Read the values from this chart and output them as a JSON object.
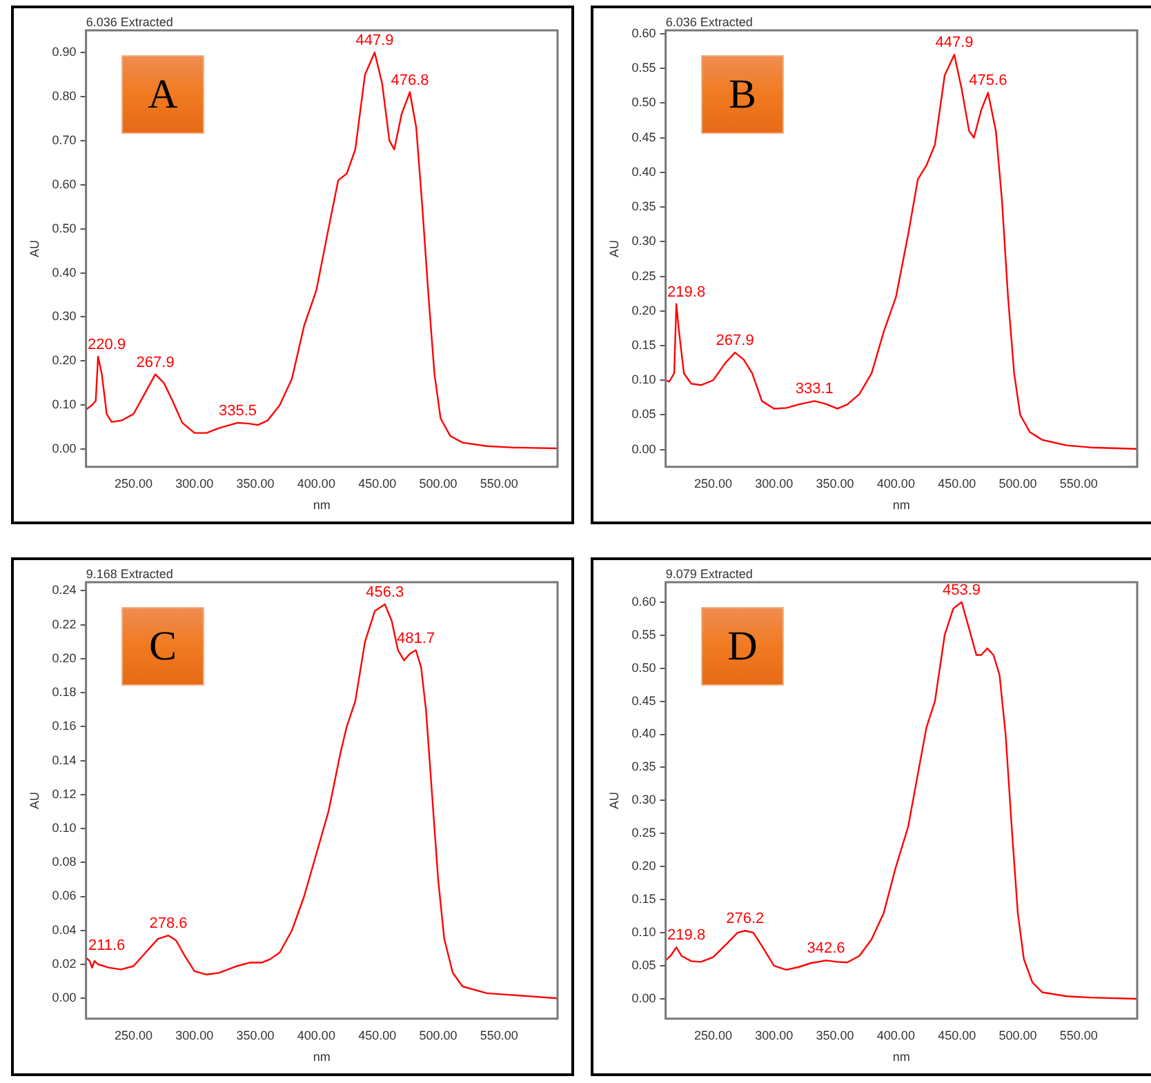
{
  "chart_data": [
    {
      "type": "line",
      "title": "6.036 Extracted",
      "xlabel": "nm",
      "ylabel": "AU",
      "grid": false,
      "legend": false,
      "marker": "none",
      "line_style": "solid",
      "xlim": [
        211,
        598
      ],
      "xticks": [
        {
          "value": 250,
          "label": "250.00"
        },
        {
          "value": 300,
          "label": "300.00"
        },
        {
          "value": 350,
          "label": "350.00"
        },
        {
          "value": 400,
          "label": "400.00"
        },
        {
          "value": 450,
          "label": "450.00"
        },
        {
          "value": 500,
          "label": "500.00"
        },
        {
          "value": 550,
          "label": "550.00"
        }
      ],
      "ylim": [
        -0.04,
        0.95
      ],
      "yticks": [
        {
          "value": 0,
          "label": "0.00"
        },
        {
          "value": 0.1,
          "label": "0.10"
        },
        {
          "value": 0.2,
          "label": "0.20"
        },
        {
          "value": 0.3,
          "label": "0.30"
        },
        {
          "value": 0.4,
          "label": "0.40"
        },
        {
          "value": 0.5,
          "label": "0.50"
        },
        {
          "value": 0.6,
          "label": "0.60"
        },
        {
          "value": 0.7,
          "label": "0.70"
        },
        {
          "value": 0.8,
          "label": "0.80"
        },
        {
          "value": 0.9,
          "label": "0.90"
        }
      ],
      "annotations": [
        "A",
        {
          "text": "220.9",
          "x": 220.9,
          "y": 0.21
        },
        {
          "text": "267.9",
          "x": 267.9,
          "y": 0.17
        },
        {
          "text": "335.5",
          "x": 335.5,
          "y": 0.06
        },
        {
          "text": "447.9",
          "x": 447.9,
          "y": 0.9
        },
        {
          "text": "476.8",
          "x": 476.8,
          "y": 0.81
        }
      ],
      "series": [
        {
          "color": "#ff0000",
          "x": [
            211,
            216,
            219,
            220.9,
            224,
            228,
            232,
            240,
            250,
            260,
            267.9,
            275,
            282,
            290,
            300,
            310,
            320,
            335.5,
            345,
            352,
            360,
            370,
            380,
            390,
            400,
            410,
            418,
            425,
            432,
            440,
            447.9,
            454,
            460,
            464,
            470,
            476.8,
            482,
            487,
            492,
            497,
            502,
            510,
            520,
            540,
            560,
            598
          ],
          "values": [
            0.09,
            0.1,
            0.11,
            0.21,
            0.17,
            0.08,
            0.062,
            0.065,
            0.08,
            0.13,
            0.17,
            0.15,
            0.11,
            0.06,
            0.037,
            0.037,
            0.048,
            0.06,
            0.058,
            0.055,
            0.065,
            0.1,
            0.16,
            0.28,
            0.36,
            0.5,
            0.61,
            0.625,
            0.68,
            0.85,
            0.9,
            0.83,
            0.7,
            0.68,
            0.76,
            0.81,
            0.73,
            0.55,
            0.35,
            0.17,
            0.07,
            0.03,
            0.015,
            0.007,
            0.004,
            0.002
          ]
        }
      ]
    },
    {
      "type": "line",
      "title": "6.036 Extracted",
      "xlabel": "nm",
      "ylabel": "AU",
      "grid": false,
      "legend": false,
      "marker": "none",
      "line_style": "solid",
      "xlim": [
        211,
        598
      ],
      "xticks": [
        {
          "value": 250,
          "label": "250.00"
        },
        {
          "value": 300,
          "label": "300.00"
        },
        {
          "value": 350,
          "label": "350.00"
        },
        {
          "value": 400,
          "label": "400.00"
        },
        {
          "value": 450,
          "label": "450.00"
        },
        {
          "value": 500,
          "label": "500.00"
        },
        {
          "value": 550,
          "label": "550.00"
        }
      ],
      "ylim": [
        -0.025,
        0.605
      ],
      "yticks": [
        {
          "value": 0,
          "label": "0.00"
        },
        {
          "value": 0.05,
          "label": "0.05"
        },
        {
          "value": 0.1,
          "label": "0.10"
        },
        {
          "value": 0.15,
          "label": "0.15"
        },
        {
          "value": 0.2,
          "label": "0.20"
        },
        {
          "value": 0.25,
          "label": "0.25"
        },
        {
          "value": 0.3,
          "label": "0.30"
        },
        {
          "value": 0.35,
          "label": "0.35"
        },
        {
          "value": 0.4,
          "label": "0.40"
        },
        {
          "value": 0.45,
          "label": "0.45"
        },
        {
          "value": 0.5,
          "label": "0.50"
        },
        {
          "value": 0.55,
          "label": "0.55"
        },
        {
          "value": 0.6,
          "label": "0.60"
        }
      ],
      "annotations": [
        "B",
        {
          "text": "219.8",
          "x": 219.8,
          "y": 0.21
        },
        {
          "text": "267.9",
          "x": 267.9,
          "y": 0.14
        },
        {
          "text": "333.1",
          "x": 333.1,
          "y": 0.07
        },
        {
          "text": "447.9",
          "x": 447.9,
          "y": 0.57
        },
        {
          "text": "475.6",
          "x": 475.6,
          "y": 0.515
        }
      ],
      "series": [
        {
          "color": "#ff0000",
          "x": [
            211,
            214,
            218,
            219.8,
            222,
            226,
            232,
            240,
            250,
            260,
            267.9,
            275,
            282,
            290,
            300,
            310,
            320,
            333.1,
            342,
            352,
            360,
            370,
            380,
            390,
            400,
            410,
            418,
            425,
            432,
            440,
            447.9,
            454,
            460,
            464,
            470,
            475.6,
            482,
            487,
            492,
            497,
            502,
            510,
            520,
            540,
            560,
            598
          ],
          "values": [
            0.1,
            0.098,
            0.11,
            0.21,
            0.17,
            0.11,
            0.095,
            0.093,
            0.1,
            0.125,
            0.14,
            0.13,
            0.11,
            0.07,
            0.059,
            0.06,
            0.065,
            0.07,
            0.066,
            0.059,
            0.065,
            0.08,
            0.11,
            0.17,
            0.22,
            0.31,
            0.39,
            0.41,
            0.44,
            0.54,
            0.57,
            0.52,
            0.46,
            0.45,
            0.49,
            0.515,
            0.46,
            0.36,
            0.22,
            0.11,
            0.05,
            0.025,
            0.014,
            0.006,
            0.003,
            0.001
          ]
        }
      ]
    },
    {
      "type": "line",
      "title": "9.168 Extracted",
      "xlabel": "nm",
      "ylabel": "AU",
      "grid": false,
      "legend": false,
      "marker": "none",
      "line_style": "solid",
      "xlim": [
        211,
        598
      ],
      "xticks": [
        {
          "value": 250,
          "label": "250.00"
        },
        {
          "value": 300,
          "label": "300.00"
        },
        {
          "value": 350,
          "label": "350.00"
        },
        {
          "value": 400,
          "label": "400.00"
        },
        {
          "value": 450,
          "label": "450.00"
        },
        {
          "value": 500,
          "label": "500.00"
        },
        {
          "value": 550,
          "label": "550.00"
        }
      ],
      "ylim": [
        -0.012,
        0.245
      ],
      "yticks": [
        {
          "value": 0,
          "label": "0.00"
        },
        {
          "value": 0.02,
          "label": "0.02"
        },
        {
          "value": 0.04,
          "label": "0.04"
        },
        {
          "value": 0.06,
          "label": "0.06"
        },
        {
          "value": 0.08,
          "label": "0.08"
        },
        {
          "value": 0.1,
          "label": "0.10"
        },
        {
          "value": 0.12,
          "label": "0.12"
        },
        {
          "value": 0.14,
          "label": "0.14"
        },
        {
          "value": 0.16,
          "label": "0.16"
        },
        {
          "value": 0.18,
          "label": "0.18"
        },
        {
          "value": 0.2,
          "label": "0.20"
        },
        {
          "value": 0.22,
          "label": "0.22"
        },
        {
          "value": 0.24,
          "label": "0.24"
        }
      ],
      "annotations": [
        "C",
        {
          "text": "211.6",
          "x": 211.6,
          "y": 0.024
        },
        {
          "text": "278.6",
          "x": 278.6,
          "y": 0.037
        },
        {
          "text": "456.3",
          "x": 456.3,
          "y": 0.232
        },
        {
          "text": "481.7",
          "x": 481.7,
          "y": 0.205
        }
      ],
      "series": [
        {
          "color": "#ff0000",
          "x": [
            211,
            214,
            216,
            218,
            221,
            230,
            240,
            250,
            260,
            270,
            278.6,
            285,
            292,
            300,
            310,
            320,
            335,
            345,
            355,
            362,
            370,
            380,
            390,
            400,
            410,
            420,
            425,
            432,
            440,
            448,
            456.3,
            462,
            467,
            472,
            477,
            481.7,
            486,
            490,
            495,
            500,
            505,
            512,
            520,
            540,
            560,
            598
          ],
          "values": [
            0.024,
            0.022,
            0.018,
            0.022,
            0.02,
            0.018,
            0.017,
            0.019,
            0.027,
            0.035,
            0.037,
            0.034,
            0.025,
            0.016,
            0.014,
            0.015,
            0.019,
            0.021,
            0.021,
            0.023,
            0.027,
            0.04,
            0.06,
            0.085,
            0.11,
            0.145,
            0.16,
            0.175,
            0.21,
            0.228,
            0.232,
            0.222,
            0.205,
            0.199,
            0.203,
            0.205,
            0.195,
            0.17,
            0.12,
            0.07,
            0.035,
            0.015,
            0.007,
            0.003,
            0.002,
            0
          ]
        }
      ]
    },
    {
      "type": "line",
      "title": "9.079 Extracted",
      "xlabel": "nm",
      "ylabel": "AU",
      "grid": false,
      "legend": false,
      "marker": "none",
      "line_style": "solid",
      "xlim": [
        211,
        598
      ],
      "xticks": [
        {
          "value": 250,
          "label": "250.00"
        },
        {
          "value": 300,
          "label": "300.00"
        },
        {
          "value": 350,
          "label": "350.00"
        },
        {
          "value": 400,
          "label": "400.00"
        },
        {
          "value": 450,
          "label": "450.00"
        },
        {
          "value": 500,
          "label": "500.00"
        },
        {
          "value": 550,
          "label": "550.00"
        }
      ],
      "ylim": [
        -0.03,
        0.63
      ],
      "yticks": [
        {
          "value": 0,
          "label": "0.00"
        },
        {
          "value": 0.05,
          "label": "0.05"
        },
        {
          "value": 0.1,
          "label": "0.10"
        },
        {
          "value": 0.15,
          "label": "0.15"
        },
        {
          "value": 0.2,
          "label": "0.20"
        },
        {
          "value": 0.25,
          "label": "0.25"
        },
        {
          "value": 0.3,
          "label": "0.30"
        },
        {
          "value": 0.35,
          "label": "0.35"
        },
        {
          "value": 0.4,
          "label": "0.40"
        },
        {
          "value": 0.45,
          "label": "0.45"
        },
        {
          "value": 0.5,
          "label": "0.50"
        },
        {
          "value": 0.55,
          "label": "0.55"
        },
        {
          "value": 0.6,
          "label": "0.60"
        }
      ],
      "annotations": [
        "D",
        {
          "text": "219.8",
          "x": 219.8,
          "y": 0.078
        },
        {
          "text": "276.2",
          "x": 276.2,
          "y": 0.103
        },
        {
          "text": "342.6",
          "x": 342.6,
          "y": 0.058
        },
        {
          "text": "453.9",
          "x": 453.9,
          "y": 0.6
        }
      ],
      "series": [
        {
          "color": "#ff0000",
          "x": [
            211,
            215,
            219.8,
            224,
            232,
            240,
            250,
            262,
            270,
            276.2,
            283,
            290,
            300,
            310,
            320,
            330,
            342.6,
            352,
            360,
            370,
            380,
            390,
            400,
            410,
            420,
            425,
            432,
            440,
            447,
            453.9,
            460,
            466,
            470,
            475,
            480,
            485,
            490,
            495,
            500,
            505,
            512,
            520,
            540,
            560,
            598
          ],
          "values": [
            0.058,
            0.065,
            0.078,
            0.065,
            0.057,
            0.056,
            0.063,
            0.085,
            0.1,
            0.103,
            0.1,
            0.08,
            0.05,
            0.044,
            0.048,
            0.054,
            0.058,
            0.056,
            0.055,
            0.065,
            0.09,
            0.13,
            0.2,
            0.26,
            0.36,
            0.41,
            0.45,
            0.55,
            0.59,
            0.6,
            0.56,
            0.52,
            0.52,
            0.53,
            0.52,
            0.49,
            0.4,
            0.26,
            0.13,
            0.06,
            0.025,
            0.01,
            0.004,
            0.002,
            0
          ]
        }
      ]
    }
  ]
}
